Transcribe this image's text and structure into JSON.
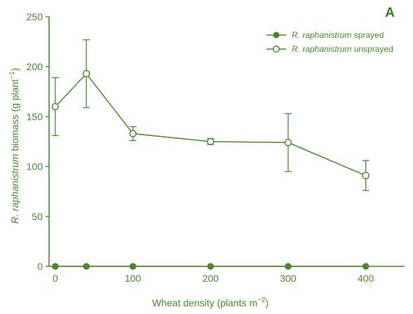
{
  "colors": {
    "series": "#4a8a2c",
    "panel_letter": "#3c7a22",
    "background": "#ffffff"
  },
  "panel_letter": "A",
  "chart_data": {
    "type": "line",
    "xlabel": "Wheat density (plants m⁻²)",
    "xlabel_parts": {
      "main": "Wheat density (plants m",
      "sup": "−2",
      "tail": ")"
    },
    "ylabel_parts": {
      "italic": "R. raphanistrum",
      "main": " biomass (g plant",
      "sup": "−1",
      "tail": ")"
    },
    "xlim": [
      -8,
      450
    ],
    "ylim": [
      0,
      250
    ],
    "x_ticks": [
      0,
      100,
      200,
      300,
      400
    ],
    "x_tick_labels": [
      "0",
      "100",
      "200",
      "300",
      "400"
    ],
    "y_ticks": [
      0,
      50,
      100,
      150,
      200,
      250
    ],
    "y_tick_labels": [
      "0",
      "50",
      "100",
      "150",
      "200",
      "250"
    ],
    "legend_position": "top-right",
    "series": [
      {
        "name_italic": "R. raphanistrum",
        "name_rest": " sprayed",
        "marker": "filled-circle",
        "x": [
          0,
          40,
          100,
          200,
          300,
          400
        ],
        "y": [
          0,
          0,
          0,
          0,
          0,
          0
        ],
        "err": [
          0,
          0,
          0,
          0,
          0,
          0
        ]
      },
      {
        "name_italic": "R. raphanistrum",
        "name_rest": " unsprayed",
        "marker": "open-circle",
        "x": [
          0,
          40,
          100,
          200,
          300,
          400
        ],
        "y": [
          160,
          193,
          133,
          125,
          124,
          91
        ],
        "err": [
          29,
          34,
          7,
          3,
          29,
          15
        ]
      }
    ]
  }
}
